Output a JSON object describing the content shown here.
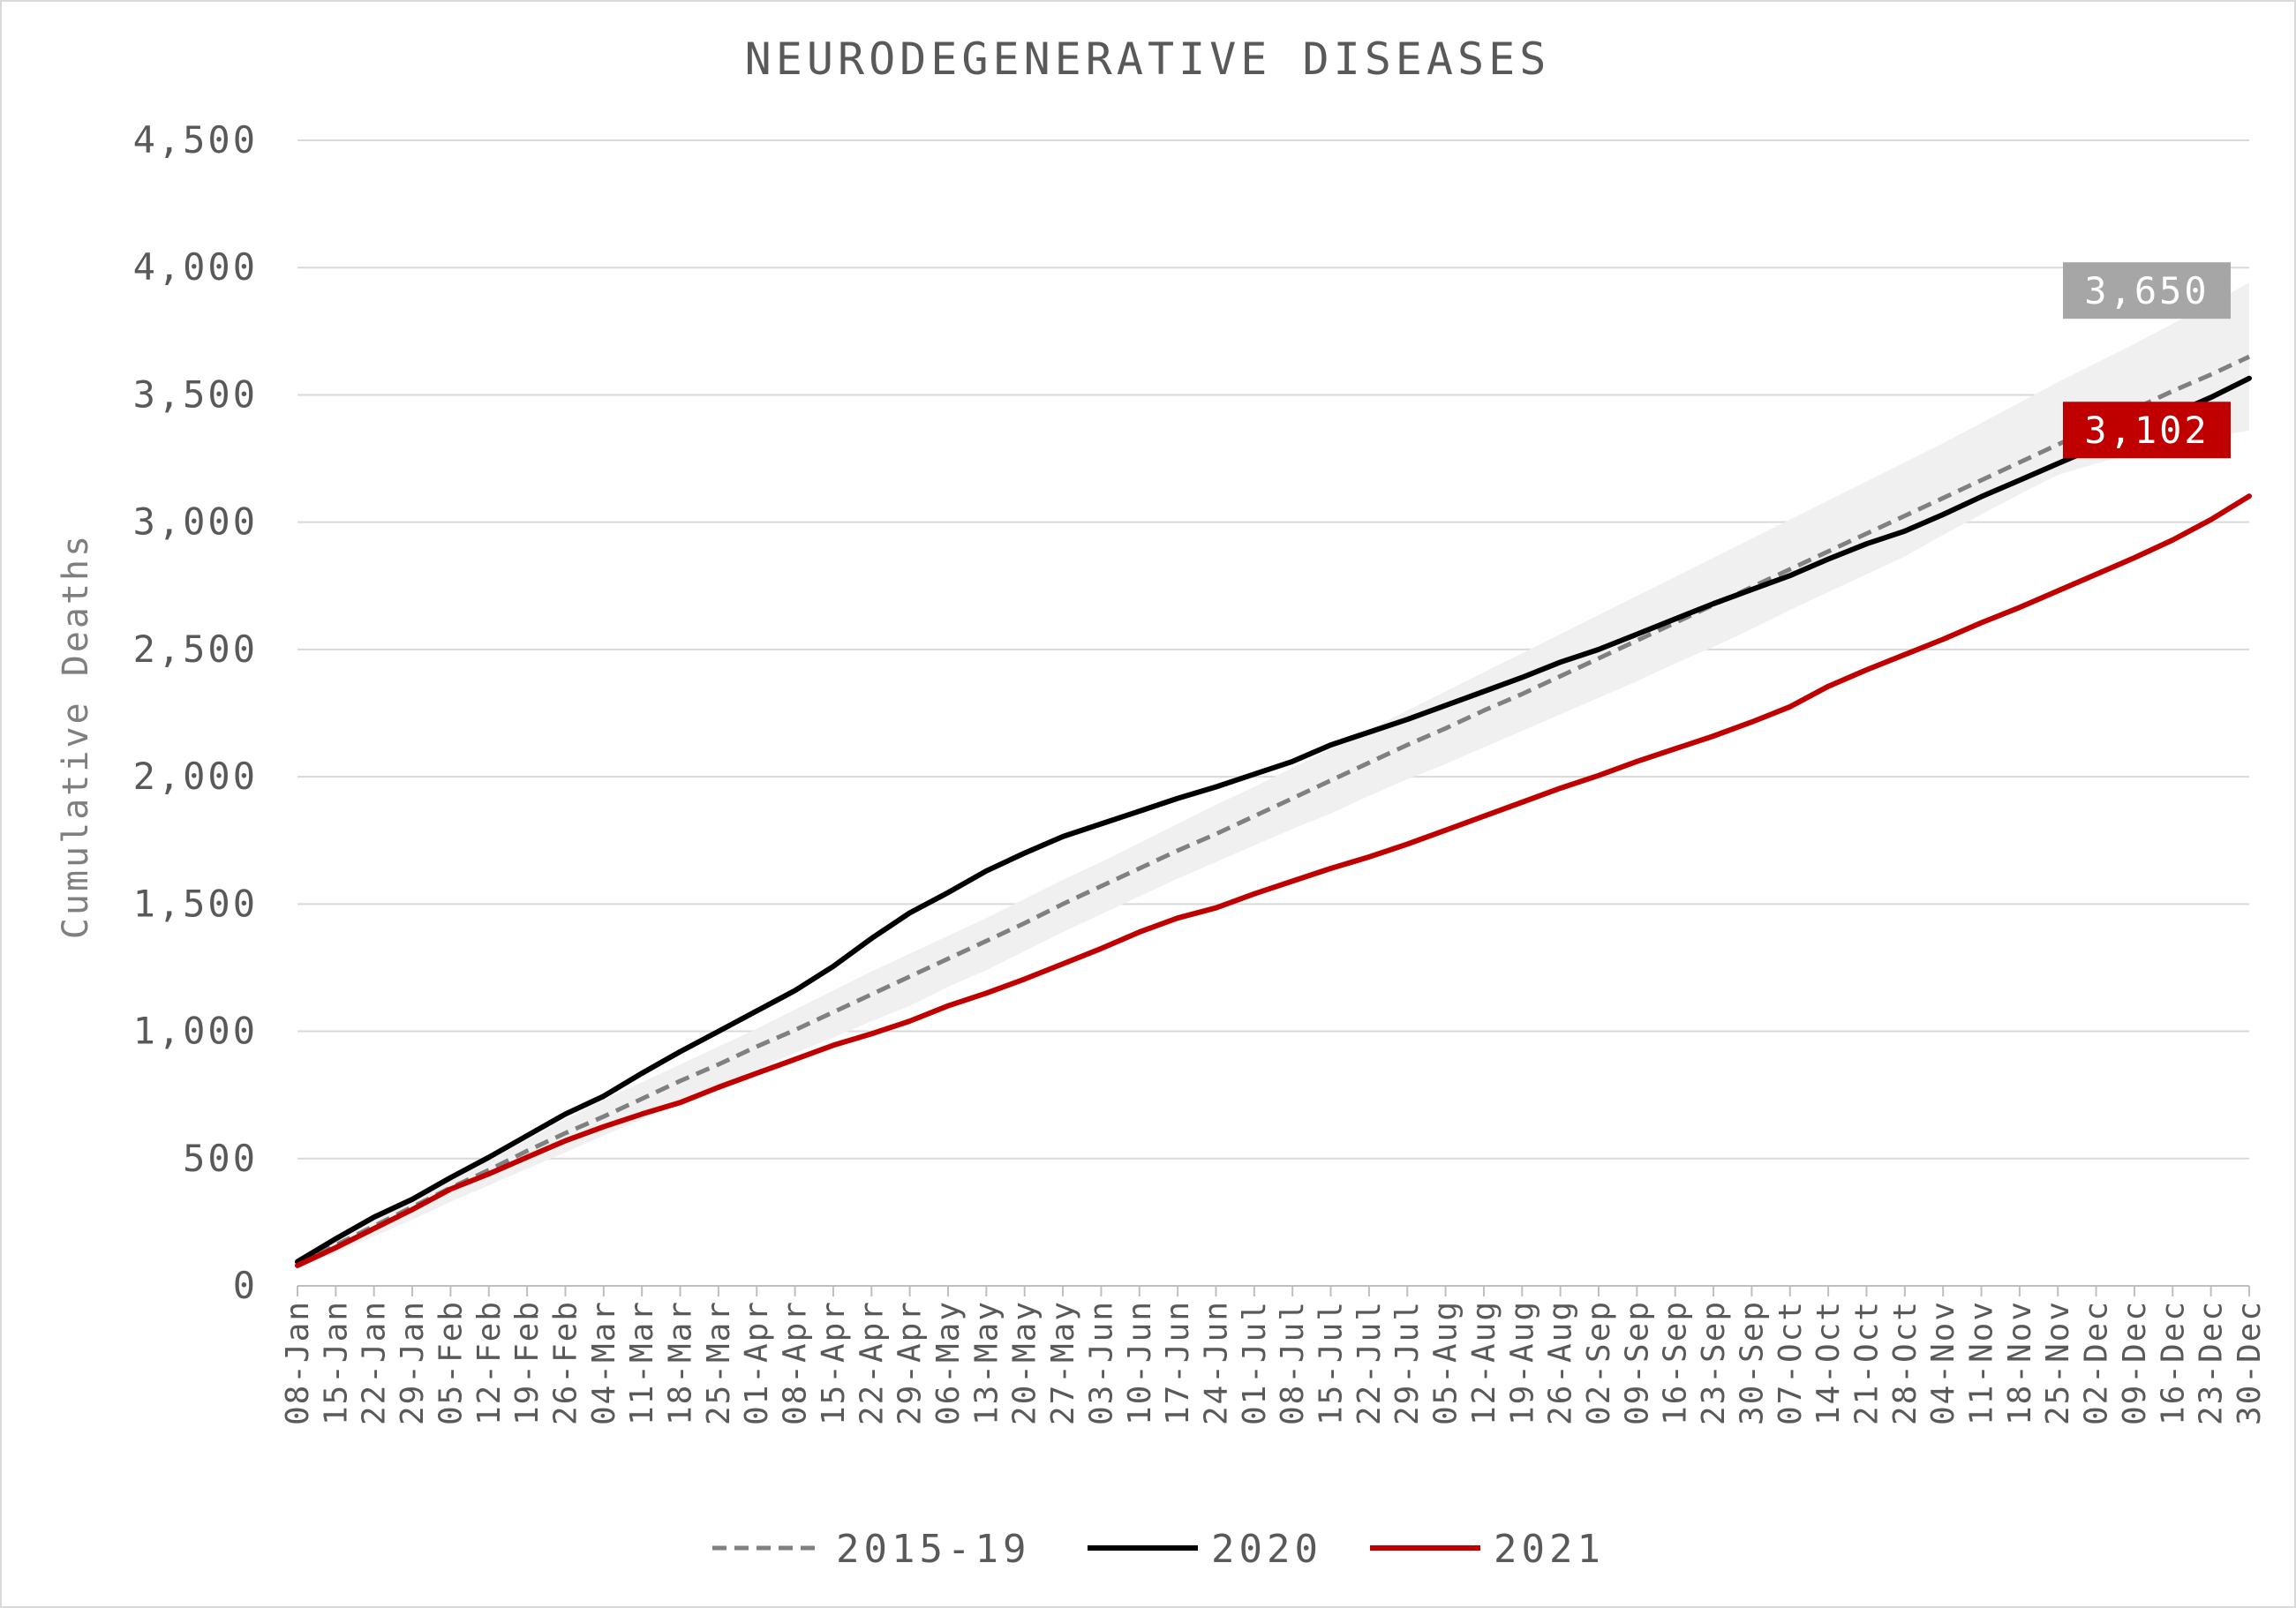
{
  "chart_data": {
    "type": "line",
    "title": "NEURODEGENERATIVE DISEASES",
    "ylabel": "Cumulative Deaths",
    "xlabel": "",
    "ylim": [
      0,
      4500
    ],
    "yticks": [
      "0",
      "500",
      "1,000",
      "1,500",
      "2,000",
      "2,500",
      "3,000",
      "3,500",
      "4,000",
      "4,500"
    ],
    "grid": "horizontal",
    "legend_position": "bottom",
    "categories": [
      "08-Jan",
      "15-Jan",
      "22-Jan",
      "29-Jan",
      "05-Feb",
      "12-Feb",
      "19-Feb",
      "26-Feb",
      "04-Mar",
      "11-Mar",
      "18-Mar",
      "25-Mar",
      "01-Apr",
      "08-Apr",
      "15-Apr",
      "22-Apr",
      "29-Apr",
      "06-May",
      "13-May",
      "20-May",
      "27-May",
      "03-Jun",
      "10-Jun",
      "17-Jun",
      "24-Jun",
      "01-Jul",
      "08-Jul",
      "15-Jul",
      "22-Jul",
      "29-Jul",
      "05-Aug",
      "12-Aug",
      "19-Aug",
      "26-Aug",
      "02-Sep",
      "09-Sep",
      "16-Sep",
      "23-Sep",
      "30-Sep",
      "07-Oct",
      "14-Oct",
      "21-Oct",
      "28-Oct",
      "04-Nov",
      "11-Nov",
      "18-Nov",
      "25-Nov",
      "02-Dec",
      "09-Dec",
      "16-Dec",
      "23-Dec",
      "30-Dec"
    ],
    "series": [
      {
        "name": "2015-19",
        "color": "#808080",
        "style": "dashed",
        "values": [
          90,
          160,
          235,
          310,
          385,
          455,
          530,
          600,
          665,
          735,
          805,
          870,
          940,
          1005,
          1075,
          1145,
          1215,
          1285,
          1355,
          1425,
          1500,
          1570,
          1640,
          1710,
          1775,
          1845,
          1915,
          1985,
          2055,
          2125,
          2190,
          2260,
          2325,
          2395,
          2465,
          2535,
          2605,
          2675,
          2745,
          2815,
          2885,
          2955,
          3025,
          3095,
          3165,
          3235,
          3305,
          3375,
          3445,
          3515,
          3580,
          3650
        ]
      },
      {
        "name": "2020",
        "color": "#000000",
        "style": "solid",
        "values": [
          95,
          185,
          270,
          340,
          425,
          505,
          590,
          675,
          745,
          835,
          920,
          1000,
          1080,
          1160,
          1255,
          1365,
          1465,
          1545,
          1630,
          1700,
          1765,
          1815,
          1865,
          1915,
          1960,
          2010,
          2060,
          2125,
          2175,
          2225,
          2280,
          2335,
          2390,
          2450,
          2500,
          2560,
          2620,
          2680,
          2735,
          2790,
          2855,
          2915,
          2965,
          3030,
          3100,
          3165,
          3230,
          3295,
          3360,
          3425,
          3490,
          3565
        ]
      },
      {
        "name": "2021",
        "color": "#c00000",
        "style": "solid",
        "values": [
          80,
          150,
          225,
          300,
          380,
          440,
          505,
          570,
          625,
          675,
          720,
          780,
          835,
          890,
          945,
          990,
          1040,
          1100,
          1150,
          1205,
          1265,
          1325,
          1390,
          1445,
          1485,
          1540,
          1590,
          1640,
          1685,
          1735,
          1790,
          1845,
          1900,
          1955,
          2005,
          2060,
          2110,
          2160,
          2215,
          2275,
          2355,
          2420,
          2480,
          2540,
          2605,
          2665,
          2730,
          2795,
          2860,
          2930,
          3010,
          3102
        ]
      }
    ],
    "band": {
      "color": "#f0f0f0",
      "lower": [
        70,
        130,
        195,
        260,
        330,
        395,
        460,
        525,
        590,
        655,
        720,
        785,
        850,
        915,
        975,
        1040,
        1100,
        1175,
        1240,
        1315,
        1390,
        1460,
        1530,
        1600,
        1665,
        1730,
        1795,
        1855,
        1925,
        1990,
        2050,
        2115,
        2180,
        2245,
        2310,
        2375,
        2445,
        2510,
        2580,
        2655,
        2725,
        2795,
        2865,
        2950,
        3030,
        3110,
        3185,
        3230,
        3270,
        3305,
        3335,
        3360
      ],
      "upper": [
        110,
        190,
        270,
        345,
        420,
        495,
        575,
        655,
        730,
        800,
        870,
        940,
        1010,
        1085,
        1160,
        1235,
        1305,
        1375,
        1445,
        1520,
        1595,
        1665,
        1740,
        1815,
        1890,
        1960,
        2035,
        2110,
        2185,
        2260,
        2335,
        2410,
        2485,
        2560,
        2635,
        2710,
        2785,
        2860,
        2935,
        3010,
        3085,
        3160,
        3235,
        3310,
        3390,
        3470,
        3550,
        3625,
        3700,
        3780,
        3860,
        3940
      ]
    },
    "callouts": [
      {
        "label": "3,650",
        "value": 3650,
        "background": "#a6a6a6"
      },
      {
        "label": "3,102",
        "value": 3102,
        "background": "#c00000"
      }
    ],
    "legend": [
      {
        "label": "2015-19",
        "color": "#808080",
        "style": "dashed"
      },
      {
        "label": "2020",
        "color": "#000000",
        "style": "solid"
      },
      {
        "label": "2021",
        "color": "#c00000",
        "style": "solid"
      }
    ]
  }
}
